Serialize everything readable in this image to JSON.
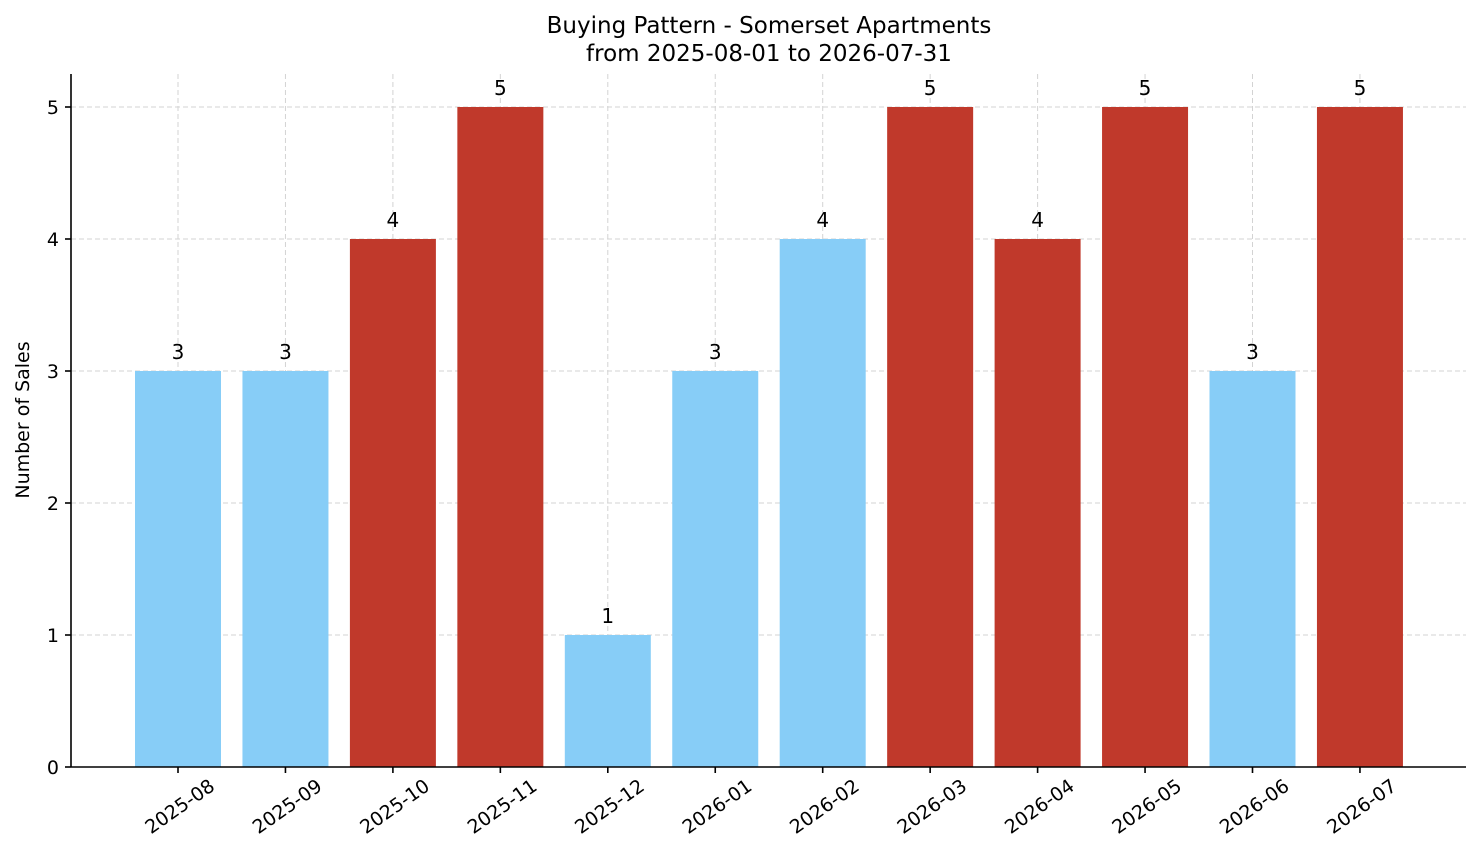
{
  "chart_data": {
    "type": "bar",
    "title": "Buying Pattern - Somerset Apartments",
    "subtitle": "from 2025-08-01 to 2026-07-31",
    "xlabel": "",
    "ylabel": "Number of Sales",
    "categories": [
      "2025-08",
      "2025-09",
      "2025-10",
      "2025-11",
      "2025-12",
      "2026-01",
      "2026-02",
      "2026-03",
      "2026-04",
      "2026-05",
      "2026-06",
      "2026-07"
    ],
    "values": [
      3,
      3,
      4,
      5,
      1,
      3,
      4,
      5,
      4,
      5,
      3,
      5
    ],
    "bar_colors": [
      "#87cdf7",
      "#87cdf7",
      "#c0392b",
      "#c0392b",
      "#87cdf7",
      "#87cdf7",
      "#87cdf7",
      "#c0392b",
      "#c0392b",
      "#c0392b",
      "#87cdf7",
      "#c0392b"
    ],
    "ylim": [
      0,
      5.25
    ],
    "yticks": [
      0,
      1,
      2,
      3,
      4,
      5
    ],
    "grid": true,
    "data_labels": true
  }
}
